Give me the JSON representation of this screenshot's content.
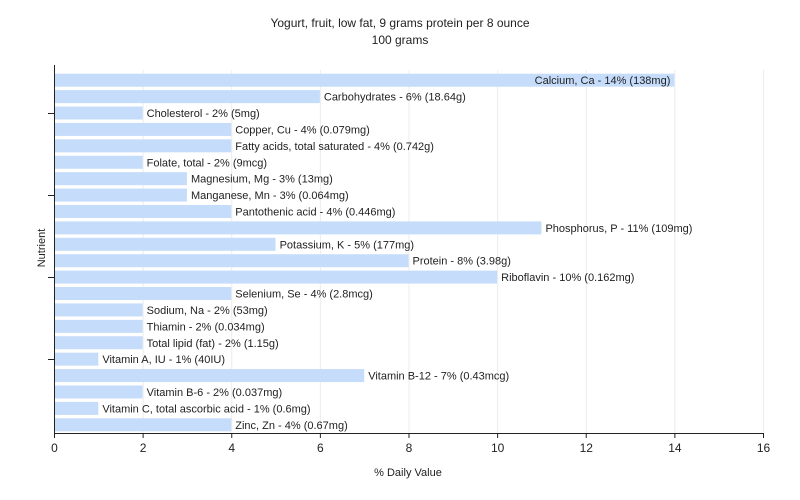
{
  "chart_data": {
    "type": "bar",
    "orientation": "horizontal",
    "title": "Yogurt, fruit, low fat, 9 grams protein per 8 ounce",
    "subtitle": "100 grams",
    "xlabel": "% Daily Value",
    "ylabel": "Nutrient",
    "xlim": [
      0,
      16
    ],
    "xticks": [
      0,
      2,
      4,
      6,
      8,
      10,
      12,
      14,
      16
    ],
    "grid": true,
    "bar_color": "#c6dcfb",
    "bars": [
      {
        "label": "Calcium, Ca - 14% (138mg)",
        "value": 14
      },
      {
        "label": "Carbohydrates - 6% (18.64g)",
        "value": 6
      },
      {
        "label": "Cholesterol - 2% (5mg)",
        "value": 2
      },
      {
        "label": "Copper, Cu - 4% (0.079mg)",
        "value": 4
      },
      {
        "label": "Fatty acids, total saturated - 4% (0.742g)",
        "value": 4
      },
      {
        "label": "Folate, total - 2% (9mcg)",
        "value": 2
      },
      {
        "label": "Magnesium, Mg - 3% (13mg)",
        "value": 3
      },
      {
        "label": "Manganese, Mn - 3% (0.064mg)",
        "value": 3
      },
      {
        "label": "Pantothenic acid - 4% (0.446mg)",
        "value": 4
      },
      {
        "label": "Phosphorus, P - 11% (109mg)",
        "value": 11
      },
      {
        "label": "Potassium, K - 5% (177mg)",
        "value": 5
      },
      {
        "label": "Protein - 8% (3.98g)",
        "value": 8
      },
      {
        "label": "Riboflavin - 10% (0.162mg)",
        "value": 10
      },
      {
        "label": "Selenium, Se - 4% (2.8mcg)",
        "value": 4
      },
      {
        "label": "Sodium, Na - 2% (53mg)",
        "value": 2
      },
      {
        "label": "Thiamin - 2% (0.034mg)",
        "value": 2
      },
      {
        "label": "Total lipid (fat) - 2% (1.15g)",
        "value": 2
      },
      {
        "label": "Vitamin A, IU - 1% (40IU)",
        "value": 1
      },
      {
        "label": "Vitamin B-12 - 7% (0.43mcg)",
        "value": 7
      },
      {
        "label": "Vitamin B-6 - 2% (0.037mg)",
        "value": 2
      },
      {
        "label": "Vitamin C, total ascorbic acid - 1% (0.6mg)",
        "value": 1
      },
      {
        "label": "Zinc, Zn - 4% (0.67mg)",
        "value": 4
      }
    ]
  }
}
